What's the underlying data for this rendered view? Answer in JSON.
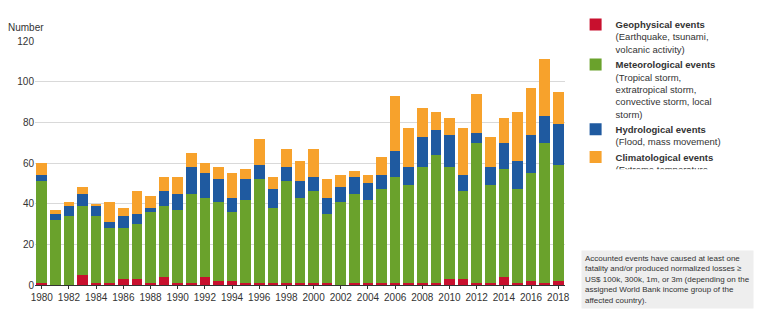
{
  "chart_data": {
    "type": "bar",
    "stacked": true,
    "grid": true,
    "legend": "right",
    "y_label": "Number",
    "note": "Accounted events have caused at least one fatality and/or produced normalized losses ≥ US$ 100k, 300k, 1m, or 3m (depending on the assigned World Bank income group of the affected country).",
    "categories": [
      "1980",
      null,
      "1982",
      null,
      "1984",
      null,
      "1986",
      null,
      "1988",
      null,
      "1990",
      null,
      "1992",
      null,
      "1994",
      null,
      "1996",
      null,
      "1998",
      null,
      "2000",
      null,
      "2002",
      null,
      "2004",
      null,
      "2006",
      null,
      "2008",
      null,
      "2010",
      null,
      "2012",
      null,
      "2014",
      null,
      "2016",
      null,
      "2018"
    ],
    "ylim": [
      0,
      120
    ],
    "yticks": [
      0,
      20,
      40,
      60,
      80,
      100,
      120
    ],
    "series": [
      {
        "name": "Geophysical events",
        "description": "(Earthquake, tsunami, volcanic activity)",
        "color": "#c8102e",
        "values": [
          1,
          0,
          0,
          5,
          1,
          1,
          3,
          3,
          1,
          4,
          1,
          1,
          4,
          2,
          2,
          1,
          1,
          1,
          1,
          1,
          1,
          1,
          0,
          1,
          1,
          1,
          1,
          1,
          1,
          1,
          3,
          3,
          1,
          1,
          4,
          1,
          2,
          1,
          2
        ]
      },
      {
        "name": "Meteorological events",
        "description": "(Tropical storm, extratropical storm, convective storm, local storm)",
        "color": "#6aa22c",
        "values": [
          50,
          32,
          34,
          34,
          33,
          27,
          25,
          27,
          35,
          35,
          36,
          44,
          39,
          39,
          34,
          41,
          51,
          37,
          50,
          42,
          45,
          34,
          41,
          44,
          41,
          46,
          52,
          48,
          57,
          63,
          55,
          43,
          69,
          48,
          53,
          46,
          53,
          69,
          57
        ]
      },
      {
        "name": "Hydrological events",
        "description": "(Flood, mass movement)",
        "color": "#1f5aa0",
        "values": [
          3,
          3,
          5,
          6,
          5,
          3,
          6,
          5,
          2,
          7,
          8,
          13,
          12,
          11,
          7,
          10,
          7,
          9,
          7,
          8,
          7,
          8,
          7,
          8,
          8,
          7,
          13,
          9,
          15,
          12,
          16,
          8,
          5,
          9,
          13,
          14,
          19,
          13,
          20
        ]
      },
      {
        "name": "Climatological events",
        "description": "(Extreme temperature, drought, forest fire)",
        "color": "#f7a22c",
        "values": [
          6,
          2,
          2,
          3,
          1,
          10,
          4,
          11,
          6,
          7,
          8,
          7,
          5,
          6,
          12,
          5,
          13,
          6,
          9,
          10,
          14,
          9,
          6,
          3,
          4,
          9,
          27,
          19,
          14,
          9,
          8,
          23,
          19,
          15,
          12,
          24,
          23,
          28,
          16
        ]
      }
    ]
  }
}
